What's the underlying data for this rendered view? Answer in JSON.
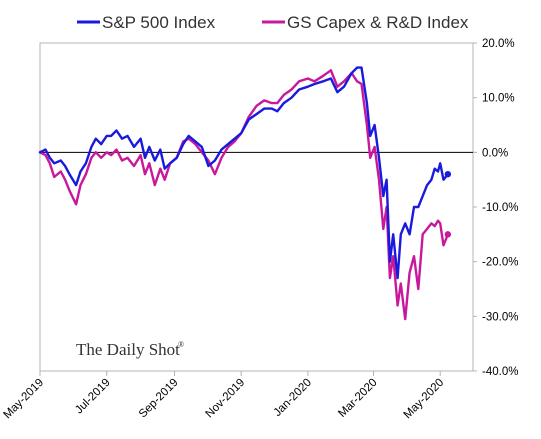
{
  "chart_data": {
    "type": "line",
    "title": "",
    "xlabel": "",
    "ylabel": "",
    "ylim": [
      -40,
      20
    ],
    "y_tick_values": [
      20,
      10,
      0,
      -10,
      -20,
      -30,
      -40
    ],
    "y_tick_labels": [
      "20.0%",
      "10.0%",
      "0.0%",
      "-10.0%",
      "-20.0%",
      "-30.0%",
      "-40.0%"
    ],
    "y_axis_side": "right",
    "x_tick_labels": [
      "May-2019",
      "Jul-2019",
      "Sep-2019",
      "Nov-2019",
      "Jan-2020",
      "Mar-2020",
      "May-2020"
    ],
    "x_range": [
      "2019-05-01",
      "2020-05-31"
    ],
    "x_ticks": [
      "2019-05-01",
      "2019-07-01",
      "2019-09-01",
      "2019-11-01",
      "2020-01-01",
      "2020-03-01",
      "2020-05-01"
    ],
    "grid": false,
    "zero_line": true,
    "legend_position": "top",
    "series": [
      {
        "name": "S&P 500 Index",
        "color": "#1a1adf",
        "x": [
          "2019-05-01",
          "2019-05-06",
          "2019-05-10",
          "2019-05-14",
          "2019-05-20",
          "2019-05-24",
          "2019-05-28",
          "2019-06-03",
          "2019-06-07",
          "2019-06-12",
          "2019-06-17",
          "2019-06-21",
          "2019-06-26",
          "2019-07-01",
          "2019-07-05",
          "2019-07-10",
          "2019-07-15",
          "2019-07-20",
          "2019-07-26",
          "2019-08-01",
          "2019-08-05",
          "2019-08-09",
          "2019-08-14",
          "2019-08-19",
          "2019-08-23",
          "2019-08-28",
          "2019-09-03",
          "2019-09-09",
          "2019-09-14",
          "2019-09-20",
          "2019-09-26",
          "2019-10-02",
          "2019-10-08",
          "2019-10-14",
          "2019-10-20",
          "2019-10-26",
          "2019-11-01",
          "2019-11-08",
          "2019-11-15",
          "2019-11-22",
          "2019-11-29",
          "2019-12-04",
          "2019-12-10",
          "2019-12-17",
          "2019-12-24",
          "2020-01-01",
          "2020-01-07",
          "2020-01-15",
          "2020-01-22",
          "2020-01-28",
          "2020-02-03",
          "2020-02-10",
          "2020-02-15",
          "2020-02-19",
          "2020-02-24",
          "2020-02-27",
          "2020-03-02",
          "2020-03-06",
          "2020-03-10",
          "2020-03-13",
          "2020-03-16",
          "2020-03-19",
          "2020-03-23",
          "2020-03-26",
          "2020-03-30",
          "2020-04-03",
          "2020-04-07",
          "2020-04-11",
          "2020-04-15",
          "2020-04-19",
          "2020-04-23",
          "2020-04-26",
          "2020-04-29",
          "2020-05-01",
          "2020-05-04",
          "2020-05-08"
        ],
        "values": [
          0.0,
          0.5,
          -1.0,
          -2.0,
          -1.5,
          -2.5,
          -4.0,
          -6.0,
          -3.5,
          -2.0,
          1.0,
          2.5,
          1.5,
          3.0,
          3.0,
          4.0,
          2.5,
          3.0,
          1.0,
          2.5,
          -1.0,
          1.0,
          -1.5,
          0.5,
          -3.0,
          -2.0,
          -1.0,
          1.5,
          3.0,
          2.0,
          1.0,
          -2.5,
          -1.5,
          0.5,
          1.5,
          2.5,
          3.5,
          6.0,
          7.0,
          8.0,
          8.0,
          7.5,
          9.0,
          10.0,
          11.5,
          12.0,
          12.5,
          13.0,
          13.5,
          11.0,
          12.0,
          14.5,
          15.5,
          15.5,
          9.0,
          3.0,
          5.0,
          -1.0,
          -8.0,
          -5.0,
          -20.0,
          -15.0,
          -23.0,
          -15.0,
          -13.0,
          -15.0,
          -10.0,
          -10.0,
          -8.0,
          -6.0,
          -5.0,
          -3.0,
          -3.5,
          -2.0,
          -5.0,
          -4.0
        ]
      },
      {
        "name": "GS Capex & R&D Index",
        "color": "#c8189c",
        "x": [
          "2019-05-01",
          "2019-05-06",
          "2019-05-10",
          "2019-05-14",
          "2019-05-20",
          "2019-05-24",
          "2019-05-28",
          "2019-06-03",
          "2019-06-07",
          "2019-06-12",
          "2019-06-17",
          "2019-06-21",
          "2019-06-26",
          "2019-07-01",
          "2019-07-05",
          "2019-07-10",
          "2019-07-15",
          "2019-07-20",
          "2019-07-26",
          "2019-08-01",
          "2019-08-05",
          "2019-08-09",
          "2019-08-14",
          "2019-08-19",
          "2019-08-23",
          "2019-08-28",
          "2019-09-03",
          "2019-09-09",
          "2019-09-14",
          "2019-09-20",
          "2019-09-26",
          "2019-10-02",
          "2019-10-08",
          "2019-10-14",
          "2019-10-20",
          "2019-10-26",
          "2019-11-01",
          "2019-11-08",
          "2019-11-15",
          "2019-11-22",
          "2019-11-29",
          "2019-12-04",
          "2019-12-10",
          "2019-12-17",
          "2019-12-24",
          "2020-01-01",
          "2020-01-07",
          "2020-01-15",
          "2020-01-22",
          "2020-01-28",
          "2020-02-03",
          "2020-02-10",
          "2020-02-15",
          "2020-02-19",
          "2020-02-24",
          "2020-02-27",
          "2020-03-02",
          "2020-03-06",
          "2020-03-10",
          "2020-03-13",
          "2020-03-16",
          "2020-03-19",
          "2020-03-23",
          "2020-03-26",
          "2020-03-30",
          "2020-04-03",
          "2020-04-07",
          "2020-04-11",
          "2020-04-15",
          "2020-04-19",
          "2020-04-23",
          "2020-04-26",
          "2020-04-29",
          "2020-05-01",
          "2020-05-04",
          "2020-05-08"
        ],
        "values": [
          0.0,
          -0.5,
          -2.0,
          -4.5,
          -3.5,
          -5.0,
          -7.0,
          -9.5,
          -6.0,
          -4.0,
          -1.0,
          0.0,
          -1.0,
          0.0,
          -0.5,
          0.5,
          -1.5,
          -1.0,
          -2.5,
          -0.5,
          -4.0,
          -2.0,
          -6.0,
          -3.0,
          -5.0,
          -2.0,
          -1.0,
          2.0,
          2.5,
          1.5,
          0.0,
          -1.5,
          -4.0,
          -1.0,
          1.0,
          2.0,
          3.5,
          6.5,
          8.5,
          9.5,
          9.0,
          9.0,
          10.5,
          11.5,
          13.0,
          13.5,
          13.0,
          14.0,
          15.0,
          12.0,
          13.0,
          14.5,
          13.0,
          12.5,
          5.0,
          -1.0,
          1.0,
          -5.0,
          -14.0,
          -10.0,
          -23.0,
          -19.0,
          -28.0,
          -24.0,
          -30.5,
          -22.0,
          -19.0,
          -25.0,
          -15.0,
          -14.0,
          -13.0,
          -13.5,
          -12.5,
          -13.0,
          -17.0,
          -15.0
        ]
      }
    ]
  },
  "watermark": {
    "text": "The Daily Shot",
    "mark": "®"
  }
}
